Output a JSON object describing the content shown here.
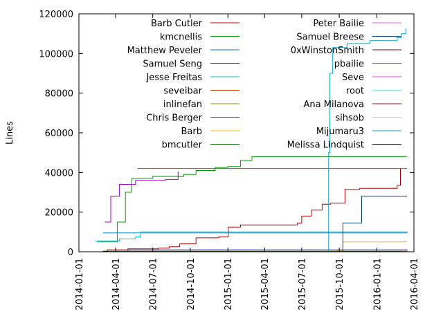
{
  "chart_data": {
    "type": "line",
    "title": "",
    "xlabel": "",
    "ylabel": "Lines",
    "xlim": [
      "2014-01-01",
      "2016-04-01"
    ],
    "ylim": [
      0,
      120000
    ],
    "x_ticks": [
      "2014-01-01",
      "2014-04-01",
      "2014-07-01",
      "2014-10-01",
      "2015-01-01",
      "2015-04-01",
      "2015-07-01",
      "2015-10-01",
      "2016-01-01",
      "2016-04-01"
    ],
    "y_ticks": [
      0,
      20000,
      40000,
      60000,
      80000,
      100000,
      120000
    ],
    "grid": false,
    "legend_position": "top-left-inside, two columns",
    "series": [
      {
        "name": "Barb Cutler",
        "color": "#c00000",
        "points": [
          [
            "2014-02-05",
            0
          ],
          [
            "2014-03-12",
            1000
          ],
          [
            "2014-05-01",
            1500
          ],
          [
            "2014-07-15",
            1800
          ],
          [
            "2014-08-10",
            2500
          ],
          [
            "2014-09-05",
            4000
          ],
          [
            "2014-10-15",
            7000
          ],
          [
            "2014-12-10",
            7500
          ],
          [
            "2015-01-02",
            12500
          ],
          [
            "2015-02-01",
            13500
          ],
          [
            "2015-06-20",
            14500
          ],
          [
            "2015-07-01",
            18000
          ],
          [
            "2015-07-25",
            21000
          ],
          [
            "2015-08-20",
            24000
          ],
          [
            "2015-09-10",
            24500
          ],
          [
            "2015-10-15",
            31500
          ],
          [
            "2015-11-20",
            32000
          ],
          [
            "2016-02-20",
            33500
          ],
          [
            "2016-02-28",
            42000
          ]
        ]
      },
      {
        "name": "kmcnellis",
        "color": "#00a000",
        "points": [
          [
            "2014-02-15",
            5000
          ],
          [
            "2014-04-05",
            15000
          ],
          [
            "2014-04-25",
            30000
          ],
          [
            "2014-05-10",
            37000
          ],
          [
            "2014-07-01",
            38000
          ],
          [
            "2014-09-15",
            39000
          ],
          [
            "2014-10-15",
            41000
          ],
          [
            "2014-12-01",
            42500
          ],
          [
            "2015-01-01",
            43000
          ],
          [
            "2015-02-01",
            46000
          ],
          [
            "2015-03-01",
            48000
          ],
          [
            "2016-03-15",
            48000
          ]
        ]
      },
      {
        "name": "Matthew Peveler",
        "color": "#0080c0",
        "points": [
          [
            "2014-03-01",
            9500
          ],
          [
            "2016-03-15",
            9800
          ]
        ]
      },
      {
        "name": "Samuel Seng",
        "color": "#9c00c8",
        "points": [
          [
            "2014-03-05",
            15000
          ],
          [
            "2014-03-20",
            28000
          ],
          [
            "2014-04-10",
            34000
          ],
          [
            "2014-05-20",
            36000
          ],
          [
            "2014-08-01",
            36500
          ],
          [
            "2014-09-01",
            40500
          ]
        ]
      },
      {
        "name": "Jesse Freitas",
        "color": "#00c0c0",
        "points": [
          [
            "2014-02-10",
            5500
          ],
          [
            "2014-04-10",
            6500
          ],
          [
            "2014-05-20",
            7500
          ],
          [
            "2014-06-01",
            10000
          ],
          [
            "2016-03-15",
            10200
          ]
        ]
      },
      {
        "name": "seveibar",
        "color": "#c04000",
        "points": [
          [
            "2014-05-25",
            42000
          ],
          [
            "2016-03-15",
            42000
          ]
        ]
      },
      {
        "name": "inlinefan",
        "color": "#c08000",
        "points": [
          [
            "2015-04-01",
            200
          ],
          [
            "2016-03-15",
            400
          ]
        ]
      },
      {
        "name": "Chris Berger",
        "color": "#4040c0",
        "points": [
          [
            "2014-04-10",
            0
          ],
          [
            "2014-05-01",
            1000
          ],
          [
            "2016-03-15",
            1200
          ]
        ]
      },
      {
        "name": "Barb",
        "color": "#ffb000",
        "points": [
          [
            "2015-09-25",
            500
          ],
          [
            "2015-10-10",
            5000
          ],
          [
            "2016-03-15",
            5000
          ]
        ]
      },
      {
        "name": "bmcutler",
        "color": "#006000",
        "points": [
          [
            "2014-03-01",
            300
          ],
          [
            "2016-03-15",
            300
          ]
        ]
      },
      {
        "name": "Peter Bailie",
        "color": "#e060e0",
        "points": [
          [
            "2016-03-01",
            200
          ],
          [
            "2016-03-10",
            1500
          ]
        ]
      },
      {
        "name": "Samuel Breese",
        "color": "#004080",
        "points": [
          [
            "2015-10-01",
            0
          ],
          [
            "2015-10-10",
            14500
          ],
          [
            "2015-11-25",
            28000
          ],
          [
            "2016-03-15",
            28000
          ]
        ]
      },
      {
        "name": "0xWinstonSmith",
        "color": "#800000",
        "points": [
          [
            "2014-03-01",
            200
          ],
          [
            "2016-03-15",
            200
          ]
        ]
      },
      {
        "name": "pbailie",
        "color": "#808000",
        "points": [
          [
            "2016-03-01",
            200
          ],
          [
            "2016-03-15",
            800
          ]
        ]
      },
      {
        "name": "Seve",
        "color": "#e040e0",
        "points": [
          [
            "2014-03-15",
            100
          ],
          [
            "2016-03-15",
            100
          ]
        ]
      },
      {
        "name": "root",
        "color": "#80e0e0",
        "points": [
          [
            "2014-03-01",
            0
          ],
          [
            "2016-03-15",
            0
          ]
        ]
      },
      {
        "name": "Ana Milanova",
        "color": "#a00040",
        "points": [
          [
            "2015-09-01",
            0
          ],
          [
            "2016-03-15",
            0
          ]
        ]
      },
      {
        "name": "sihsob",
        "color": "#e0e000",
        "points": [
          [
            "2015-09-01",
            0
          ],
          [
            "2016-03-15",
            100
          ]
        ]
      },
      {
        "name": "Mijumaru3",
        "color": "#00a0c0",
        "points": [
          [
            "2015-09-03",
            0
          ],
          [
            "2015-09-05",
            50000
          ],
          [
            "2015-09-08",
            90000
          ],
          [
            "2015-09-15",
            103000
          ],
          [
            "2015-10-20",
            105000
          ],
          [
            "2015-12-15",
            106500
          ],
          [
            "2016-02-20",
            108000
          ],
          [
            "2016-03-01",
            110000
          ],
          [
            "2016-03-12",
            112500
          ]
        ]
      },
      {
        "name": "Melissa Lindquist",
        "color": "#000000",
        "points": [
          [
            "2014-07-01",
            0
          ],
          [
            "2016-03-15",
            0
          ]
        ]
      }
    ]
  }
}
